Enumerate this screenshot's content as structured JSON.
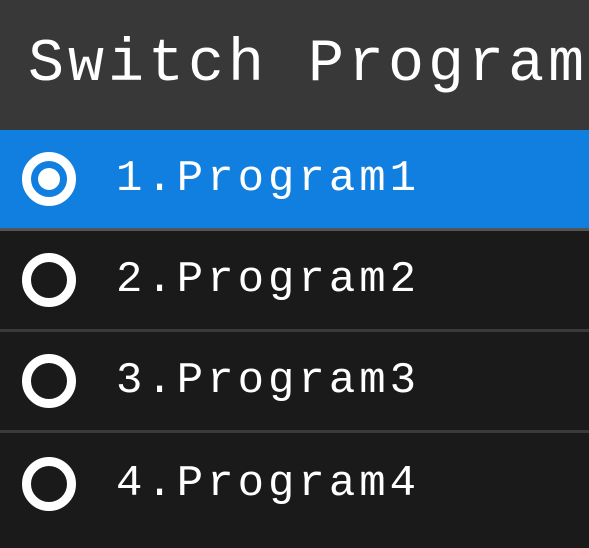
{
  "header": {
    "title": "Switch Program"
  },
  "list": {
    "selected_index": 0,
    "colors": {
      "selected_bg": "#107fe0",
      "default_bg": "#1a1a1a",
      "header_bg": "#383838",
      "divider": "#3a3a3a",
      "text": "#ffffff"
    },
    "items": [
      {
        "label": "1.Program1",
        "selected": true
      },
      {
        "label": "2.Program2",
        "selected": false
      },
      {
        "label": "3.Program3",
        "selected": false
      },
      {
        "label": "4.Program4",
        "selected": false
      }
    ]
  }
}
